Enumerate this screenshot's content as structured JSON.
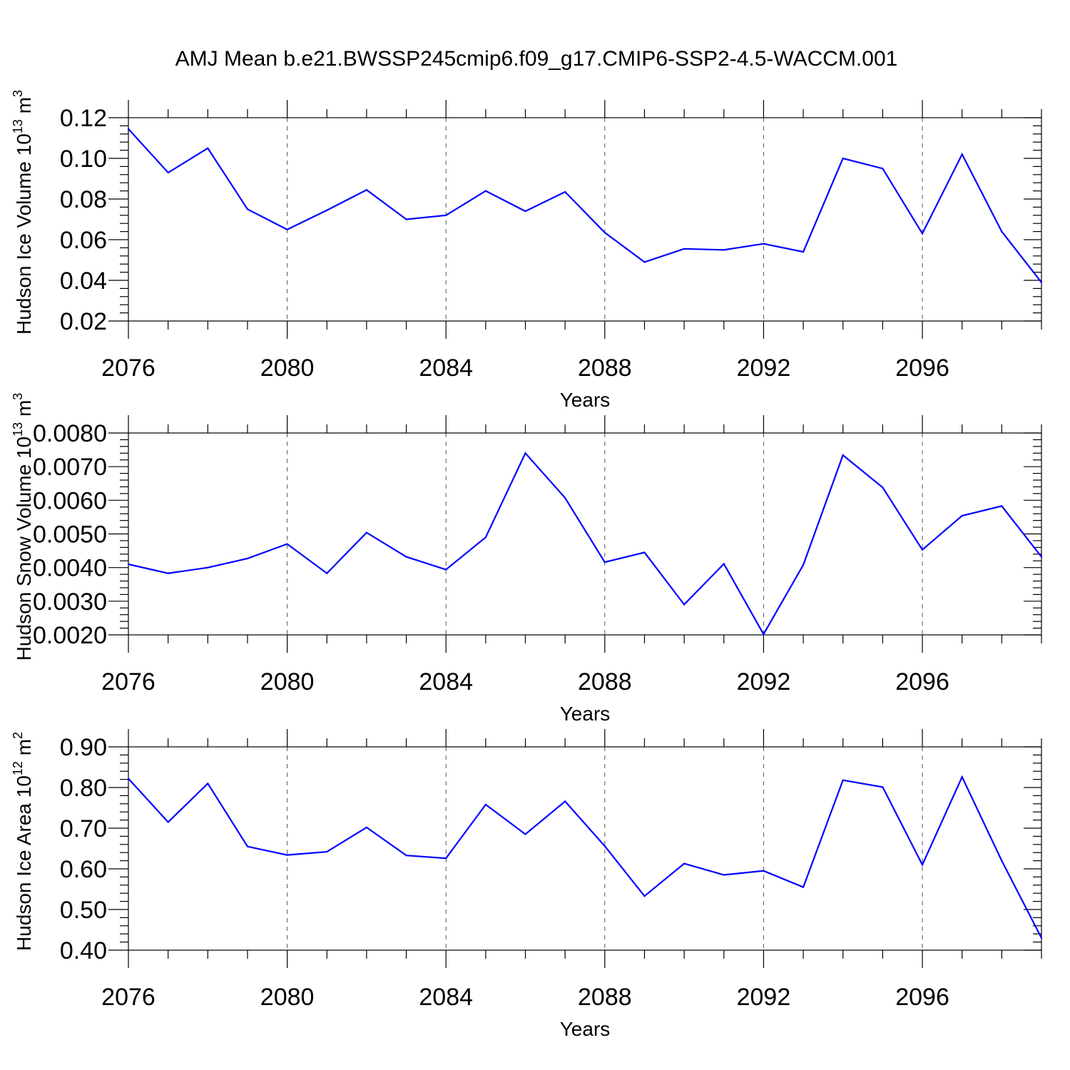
{
  "chart_data": [
    {
      "type": "line",
      "title": "AMJ Mean b.e21.BWSSP245cmip6.f09_g17.CMIP6-SSP2-4.5-WACCM.001",
      "ylabel": "Hudson Ice Volume 10",
      "ylabel_exp": "13",
      "ylabel_unit": " m",
      "ylabel_unit_exp": "3",
      "xlabel": "Years",
      "xlim": [
        2076,
        2099
      ],
      "ylim": [
        0.02,
        0.12
      ],
      "yticks": [
        0.02,
        0.04,
        0.06,
        0.08,
        0.1,
        0.12
      ],
      "ytick_labels": [
        "0.02",
        "0.04",
        "0.06",
        "0.08",
        "0.10",
        "0.12"
      ],
      "xticks": [
        2076,
        2080,
        2084,
        2088,
        2092,
        2096
      ],
      "xtick_labels": [
        "2076",
        "2080",
        "2084",
        "2088",
        "2092",
        "2096"
      ],
      "x": [
        2076,
        2077,
        2078,
        2079,
        2080,
        2081,
        2082,
        2083,
        2084,
        2085,
        2086,
        2087,
        2088,
        2089,
        2090,
        2091,
        2092,
        2093,
        2094,
        2095,
        2096,
        2097,
        2098,
        2099
      ],
      "values": [
        0.1145,
        0.093,
        0.105,
        0.075,
        0.065,
        0.0745,
        0.0845,
        0.07,
        0.072,
        0.084,
        0.074,
        0.0835,
        0.0635,
        0.049,
        0.0555,
        0.055,
        0.058,
        0.054,
        0.1,
        0.095,
        0.063,
        0.102,
        0.064,
        0.039
      ],
      "color": "#0000ff"
    },
    {
      "type": "line",
      "ylabel": "Hudson Snow Volume 10",
      "ylabel_exp": "13",
      "ylabel_unit": " m",
      "ylabel_unit_exp": "3",
      "xlabel": "Years",
      "xlim": [
        2076,
        2099
      ],
      "ylim": [
        0.002,
        0.008
      ],
      "yticks": [
        0.002,
        0.003,
        0.004,
        0.005,
        0.006,
        0.007,
        0.008
      ],
      "ytick_labels": [
        "0.0020",
        "0.0030",
        "0.0040",
        "0.0050",
        "0.0060",
        "0.0070",
        "0.0080"
      ],
      "xticks": [
        2076,
        2080,
        2084,
        2088,
        2092,
        2096
      ],
      "xtick_labels": [
        "2076",
        "2080",
        "2084",
        "2088",
        "2092",
        "2096"
      ],
      "x": [
        2076,
        2077,
        2078,
        2079,
        2080,
        2081,
        2082,
        2083,
        2084,
        2085,
        2086,
        2087,
        2088,
        2089,
        2090,
        2091,
        2092,
        2093,
        2094,
        2095,
        2096,
        2097,
        2098,
        2099
      ],
      "values": [
        0.0041,
        0.00383,
        0.004,
        0.00427,
        0.0047,
        0.00383,
        0.00504,
        0.00432,
        0.00394,
        0.0049,
        0.0074,
        0.00607,
        0.00416,
        0.00445,
        0.0029,
        0.00411,
        0.00202,
        0.00408,
        0.00734,
        0.00638,
        0.00453,
        0.00554,
        0.00583,
        0.00432
      ],
      "color": "#0000ff"
    },
    {
      "type": "line",
      "ylabel": "Hudson Ice Area 10",
      "ylabel_exp": "12",
      "ylabel_unit": " m",
      "ylabel_unit_exp": "2",
      "xlabel": "Years",
      "xlim": [
        2076,
        2099
      ],
      "ylim": [
        0.4,
        0.9
      ],
      "yticks": [
        0.4,
        0.5,
        0.6,
        0.7,
        0.8,
        0.9
      ],
      "ytick_labels": [
        "0.40",
        "0.50",
        "0.60",
        "0.70",
        "0.80",
        "0.90"
      ],
      "xticks": [
        2076,
        2080,
        2084,
        2088,
        2092,
        2096
      ],
      "xtick_labels": [
        "2076",
        "2080",
        "2084",
        "2088",
        "2092",
        "2096"
      ],
      "x": [
        2076,
        2077,
        2078,
        2079,
        2080,
        2081,
        2082,
        2083,
        2084,
        2085,
        2086,
        2087,
        2088,
        2089,
        2090,
        2091,
        2092,
        2093,
        2094,
        2095,
        2096,
        2097,
        2098,
        2099
      ],
      "values": [
        0.822,
        0.715,
        0.81,
        0.655,
        0.634,
        0.642,
        0.702,
        0.633,
        0.626,
        0.758,
        0.685,
        0.766,
        0.656,
        0.533,
        0.613,
        0.585,
        0.595,
        0.555,
        0.818,
        0.801,
        0.61,
        0.826,
        0.62,
        0.43
      ],
      "color": "#0000ff"
    }
  ]
}
